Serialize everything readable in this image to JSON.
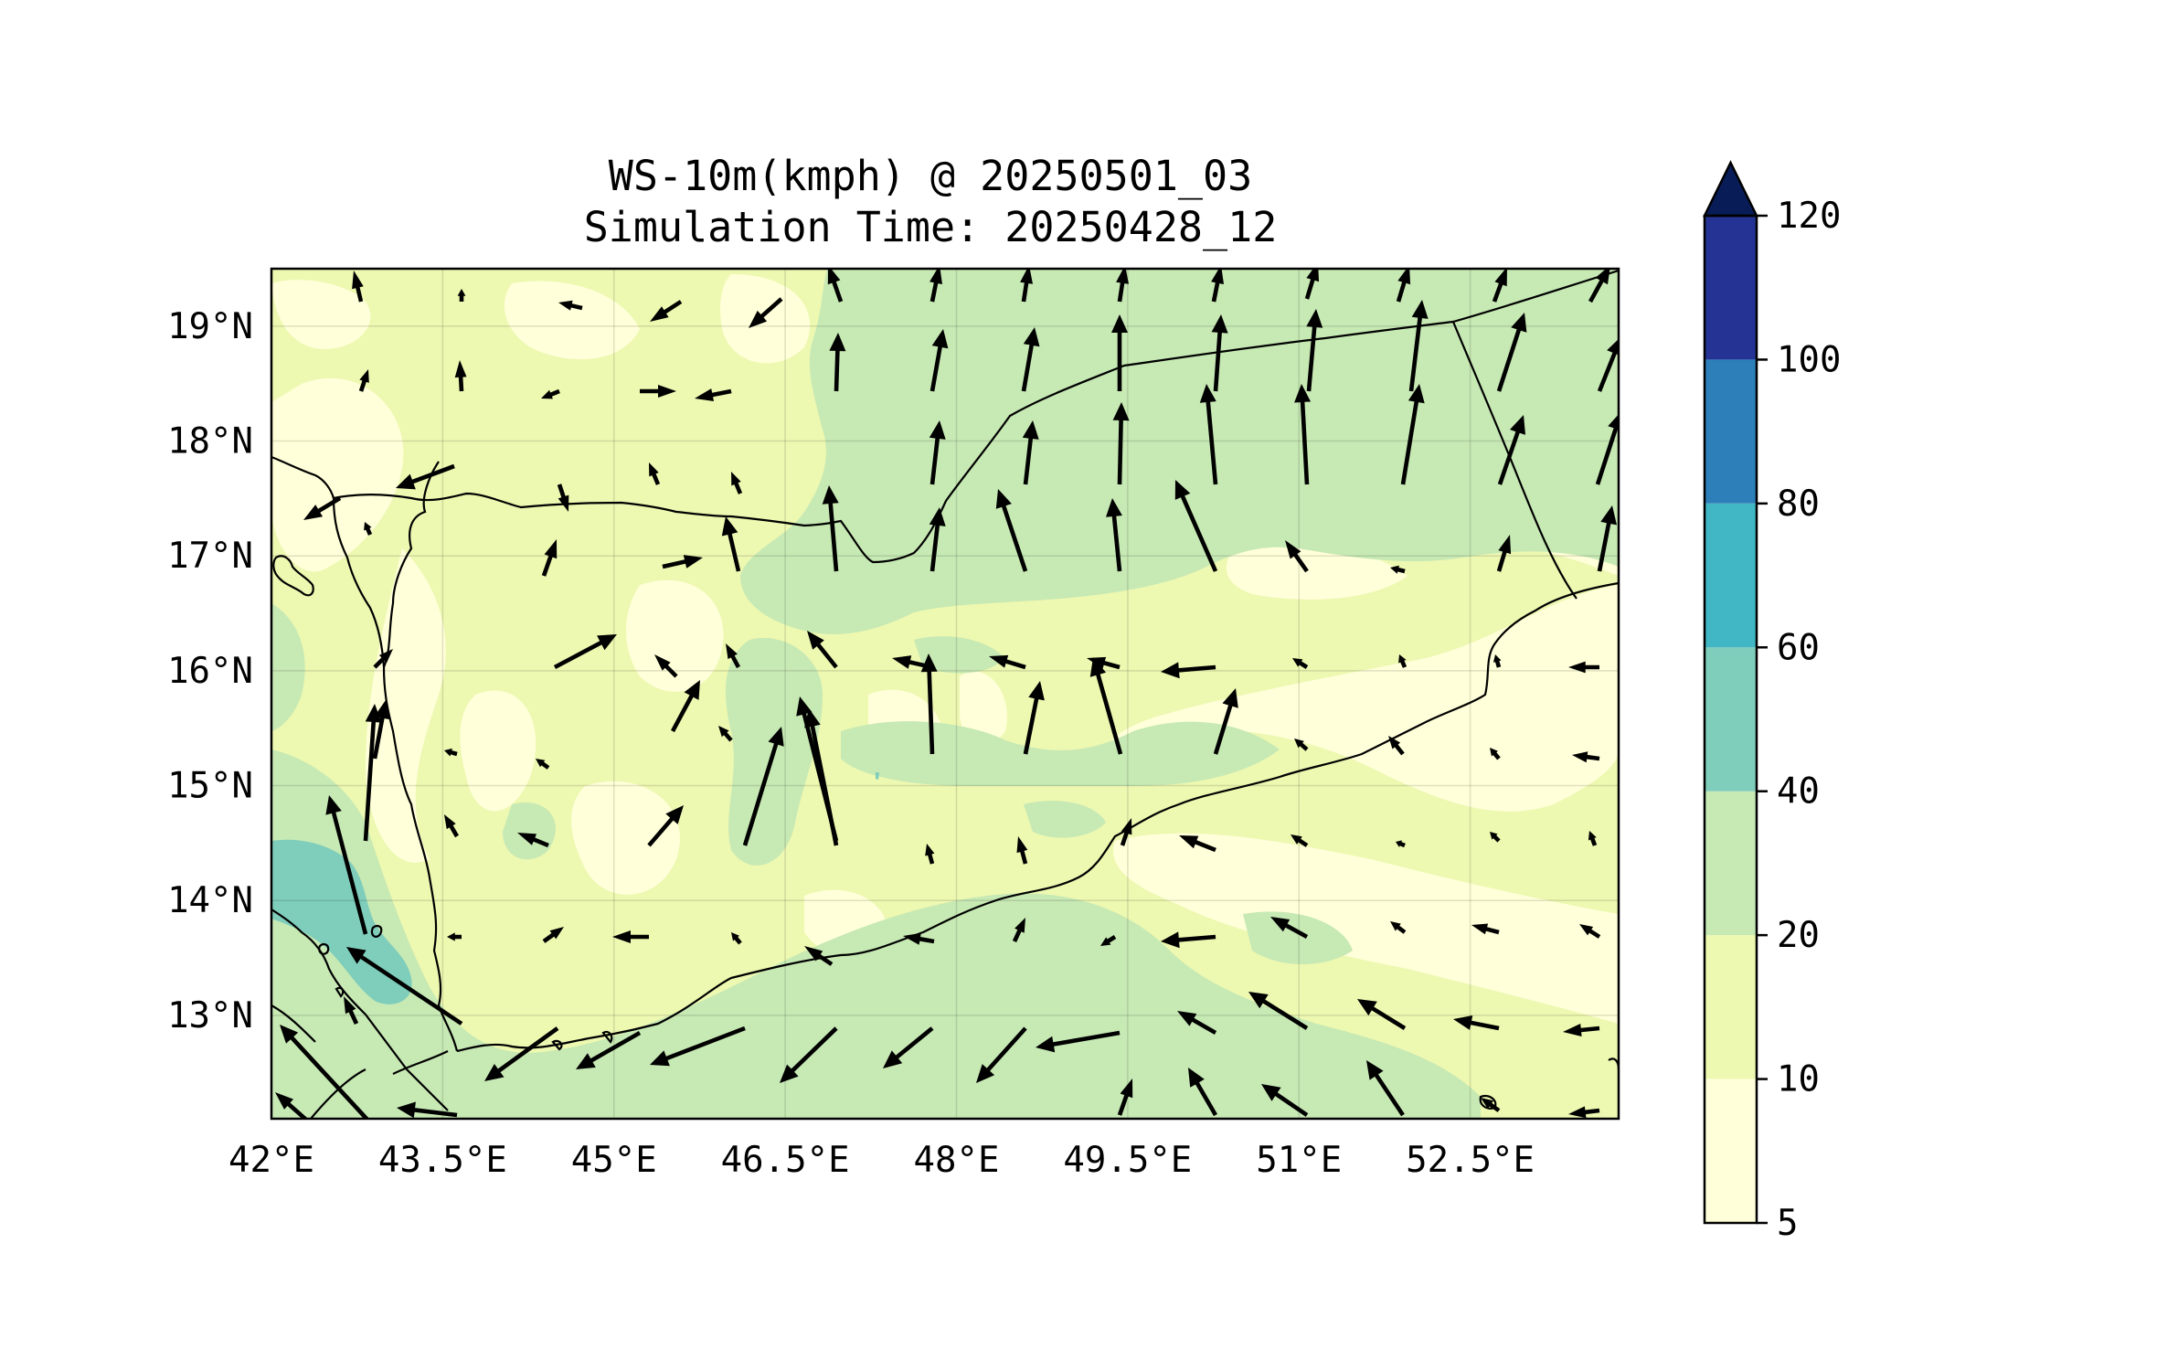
{
  "title_line1": "WS-10m(kmph) @ 20250501_03",
  "title_line2": "Simulation Time: 20250428_12",
  "map": {
    "lon_range": [
      42.0,
      53.8
    ],
    "lat_range": [
      12.1,
      19.5
    ],
    "lon_ticks": [
      {
        "value": 42.0,
        "label": "42°E"
      },
      {
        "value": 43.5,
        "label": "43.5°E"
      },
      {
        "value": 45.0,
        "label": "45°E"
      },
      {
        "value": 46.5,
        "label": "46.5°E"
      },
      {
        "value": 48.0,
        "label": "48°E"
      },
      {
        "value": 49.5,
        "label": "49.5°E"
      },
      {
        "value": 51.0,
        "label": "51°E"
      },
      {
        "value": 52.5,
        "label": "52.5°E"
      }
    ],
    "lat_ticks": [
      {
        "value": 19,
        "label": "19°N"
      },
      {
        "value": 18,
        "label": "18°N"
      },
      {
        "value": 17,
        "label": "17°N"
      },
      {
        "value": 16,
        "label": "16°N"
      },
      {
        "value": 15,
        "label": "15°N"
      },
      {
        "value": 14,
        "label": "14°N"
      },
      {
        "value": 13,
        "label": "13°N"
      }
    ],
    "grid": true,
    "colors": {
      "band_5_10": "#ffffd9",
      "band_10_20": "#edf8b1",
      "band_20_40": "#c7e9b4",
      "band_40_60": "#7fcdbb",
      "band_60_80": "#41b6c4",
      "band_80_100": "#2c7fb8",
      "band_100_120": "#253494",
      "over_120": "#081d58"
    }
  },
  "colorbar": {
    "levels": [
      "5",
      "10",
      "20",
      "40",
      "60",
      "80",
      "100",
      "120"
    ],
    "colors": [
      "#ffffd9",
      "#edf8b1",
      "#c7e9b4",
      "#7fcdbb",
      "#41b6c4",
      "#2c7fb8",
      "#253494"
    ],
    "extend_color": "#081d58"
  }
}
